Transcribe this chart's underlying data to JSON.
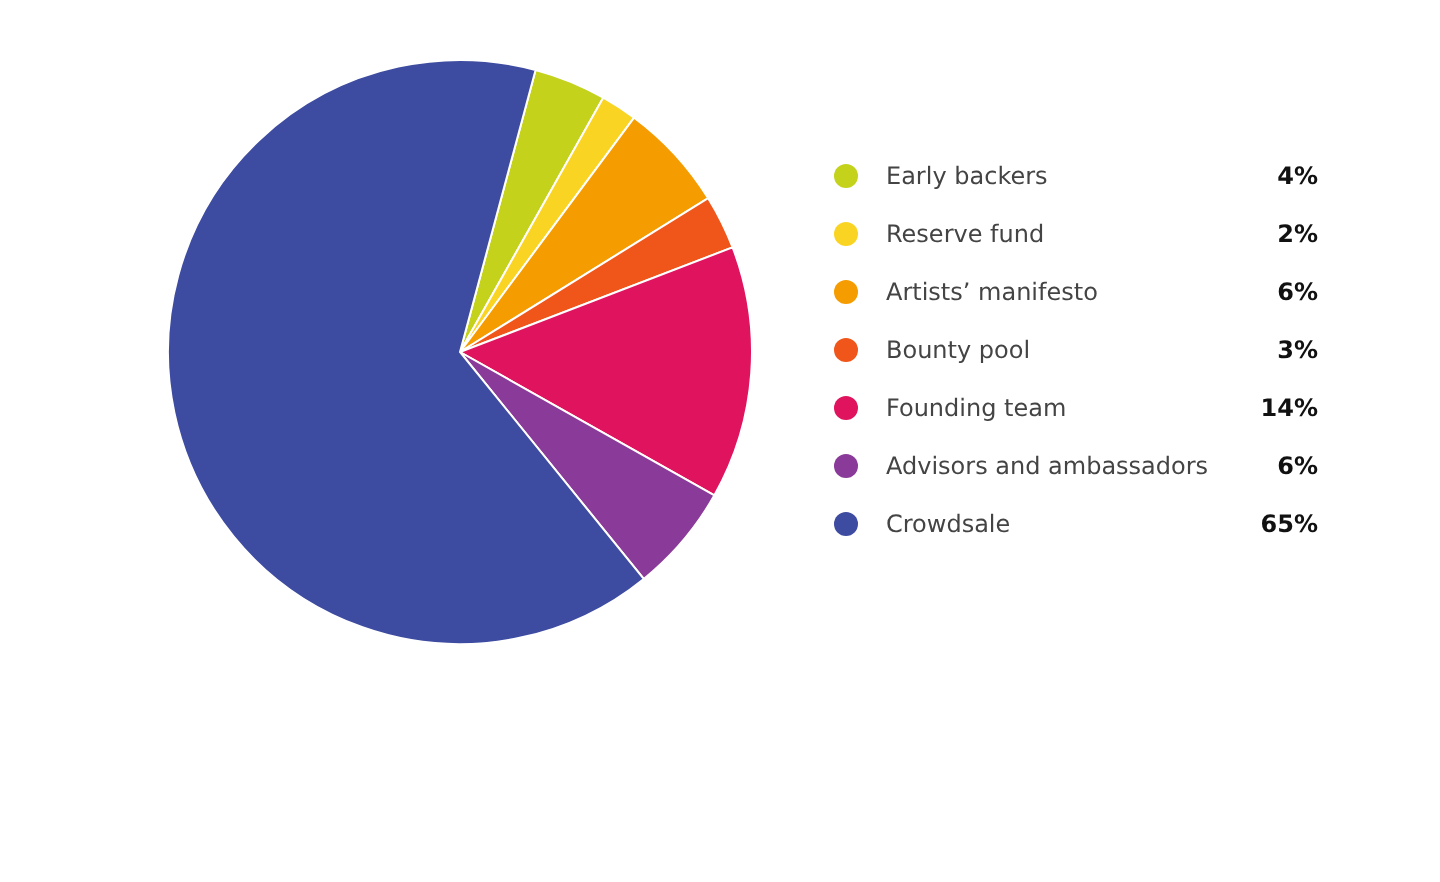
{
  "chart_data": {
    "type": "pie",
    "categories": [
      "Early backers",
      "Reserve fund",
      "Artists’ manifesto",
      "Bounty pool",
      "Founding team",
      "Advisors and ambassadors",
      "Crowdsale"
    ],
    "values": [
      4,
      2,
      6,
      3,
      14,
      6,
      65
    ],
    "value_labels": [
      "4%",
      "2%",
      "6%",
      "3%",
      "14%",
      "6%",
      "65%"
    ],
    "colors": [
      "#c4d21c",
      "#fad423",
      "#f59c00",
      "#f0561a",
      "#e0135e",
      "#8a3a98",
      "#3d4ba0"
    ],
    "legend": "right"
  }
}
